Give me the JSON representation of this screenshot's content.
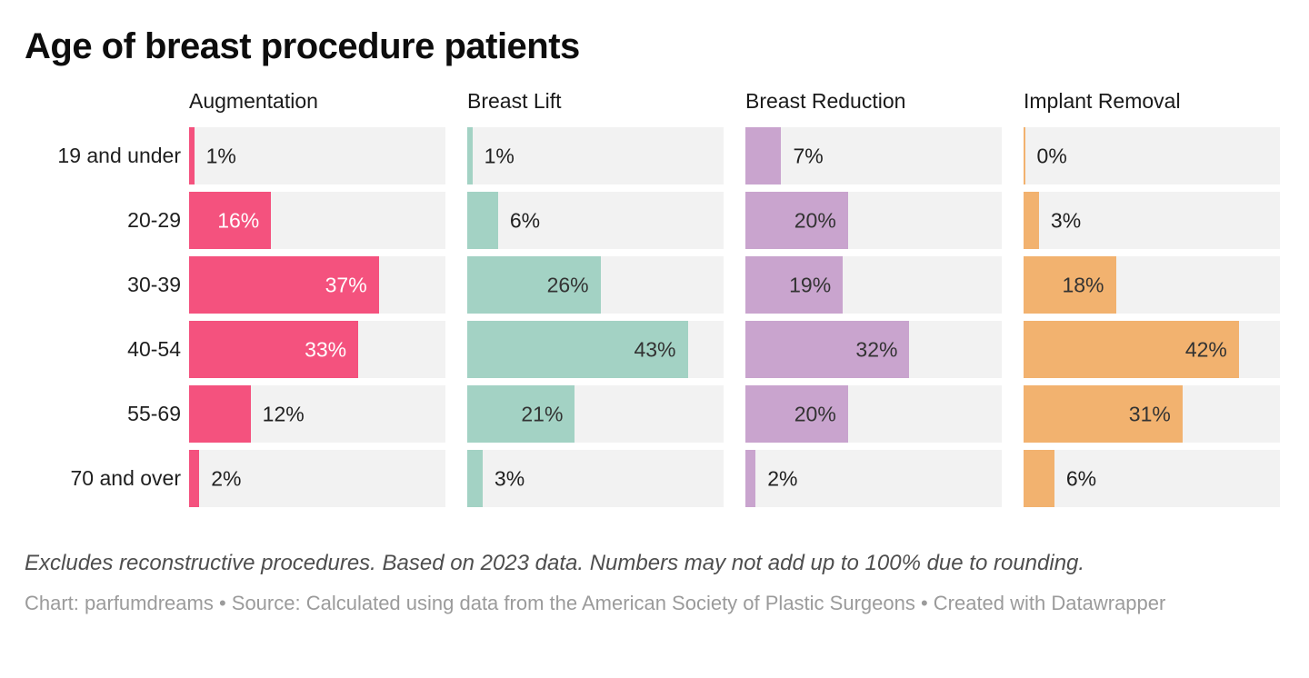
{
  "chart_data": {
    "type": "bar",
    "layout": "small-multiples-horizontal-bars",
    "title": "Age of breast procedure patients",
    "categories": [
      "19 and under",
      "20-29",
      "30-39",
      "40-54",
      "55-69",
      "70 and over"
    ],
    "series": [
      {
        "name": "Augmentation",
        "color": "#f4527e",
        "inside_label_color": "#ffffff",
        "values": [
          1,
          16,
          37,
          33,
          12,
          2
        ],
        "value_labels": [
          "1%",
          "16%",
          "37%",
          "33%",
          "12%",
          "2%"
        ]
      },
      {
        "name": "Breast Lift",
        "color": "#a3d2c4",
        "inside_label_color": "#333333",
        "values": [
          1,
          6,
          26,
          43,
          21,
          3
        ],
        "value_labels": [
          "1%",
          "6%",
          "26%",
          "43%",
          "21%",
          "3%"
        ]
      },
      {
        "name": "Breast Reduction",
        "color": "#c9a4ce",
        "inside_label_color": "#333333",
        "values": [
          7,
          20,
          19,
          32,
          20,
          2
        ],
        "value_labels": [
          "7%",
          "20%",
          "19%",
          "32%",
          "20%",
          "2%"
        ]
      },
      {
        "name": "Implant Removal",
        "color": "#f2b26f",
        "inside_label_color": "#333333",
        "values": [
          0,
          3,
          18,
          42,
          31,
          6
        ],
        "value_labels": [
          "0%",
          "3%",
          "18%",
          "42%",
          "31%",
          "6%"
        ]
      }
    ],
    "xlim": [
      0,
      50
    ],
    "grid": false,
    "legend_position": "column-headers",
    "inside_label_min_value": 15,
    "track_color": "#f2f2f2",
    "notes": "Excludes reconstructive procedures. Based on 2023 data. Numbers may not add up to 100% due to rounding.",
    "credits": "Chart: parfumdreams • Source: Calculated using data from the American Society of Plastic Surgeons • Created with Datawrapper"
  }
}
